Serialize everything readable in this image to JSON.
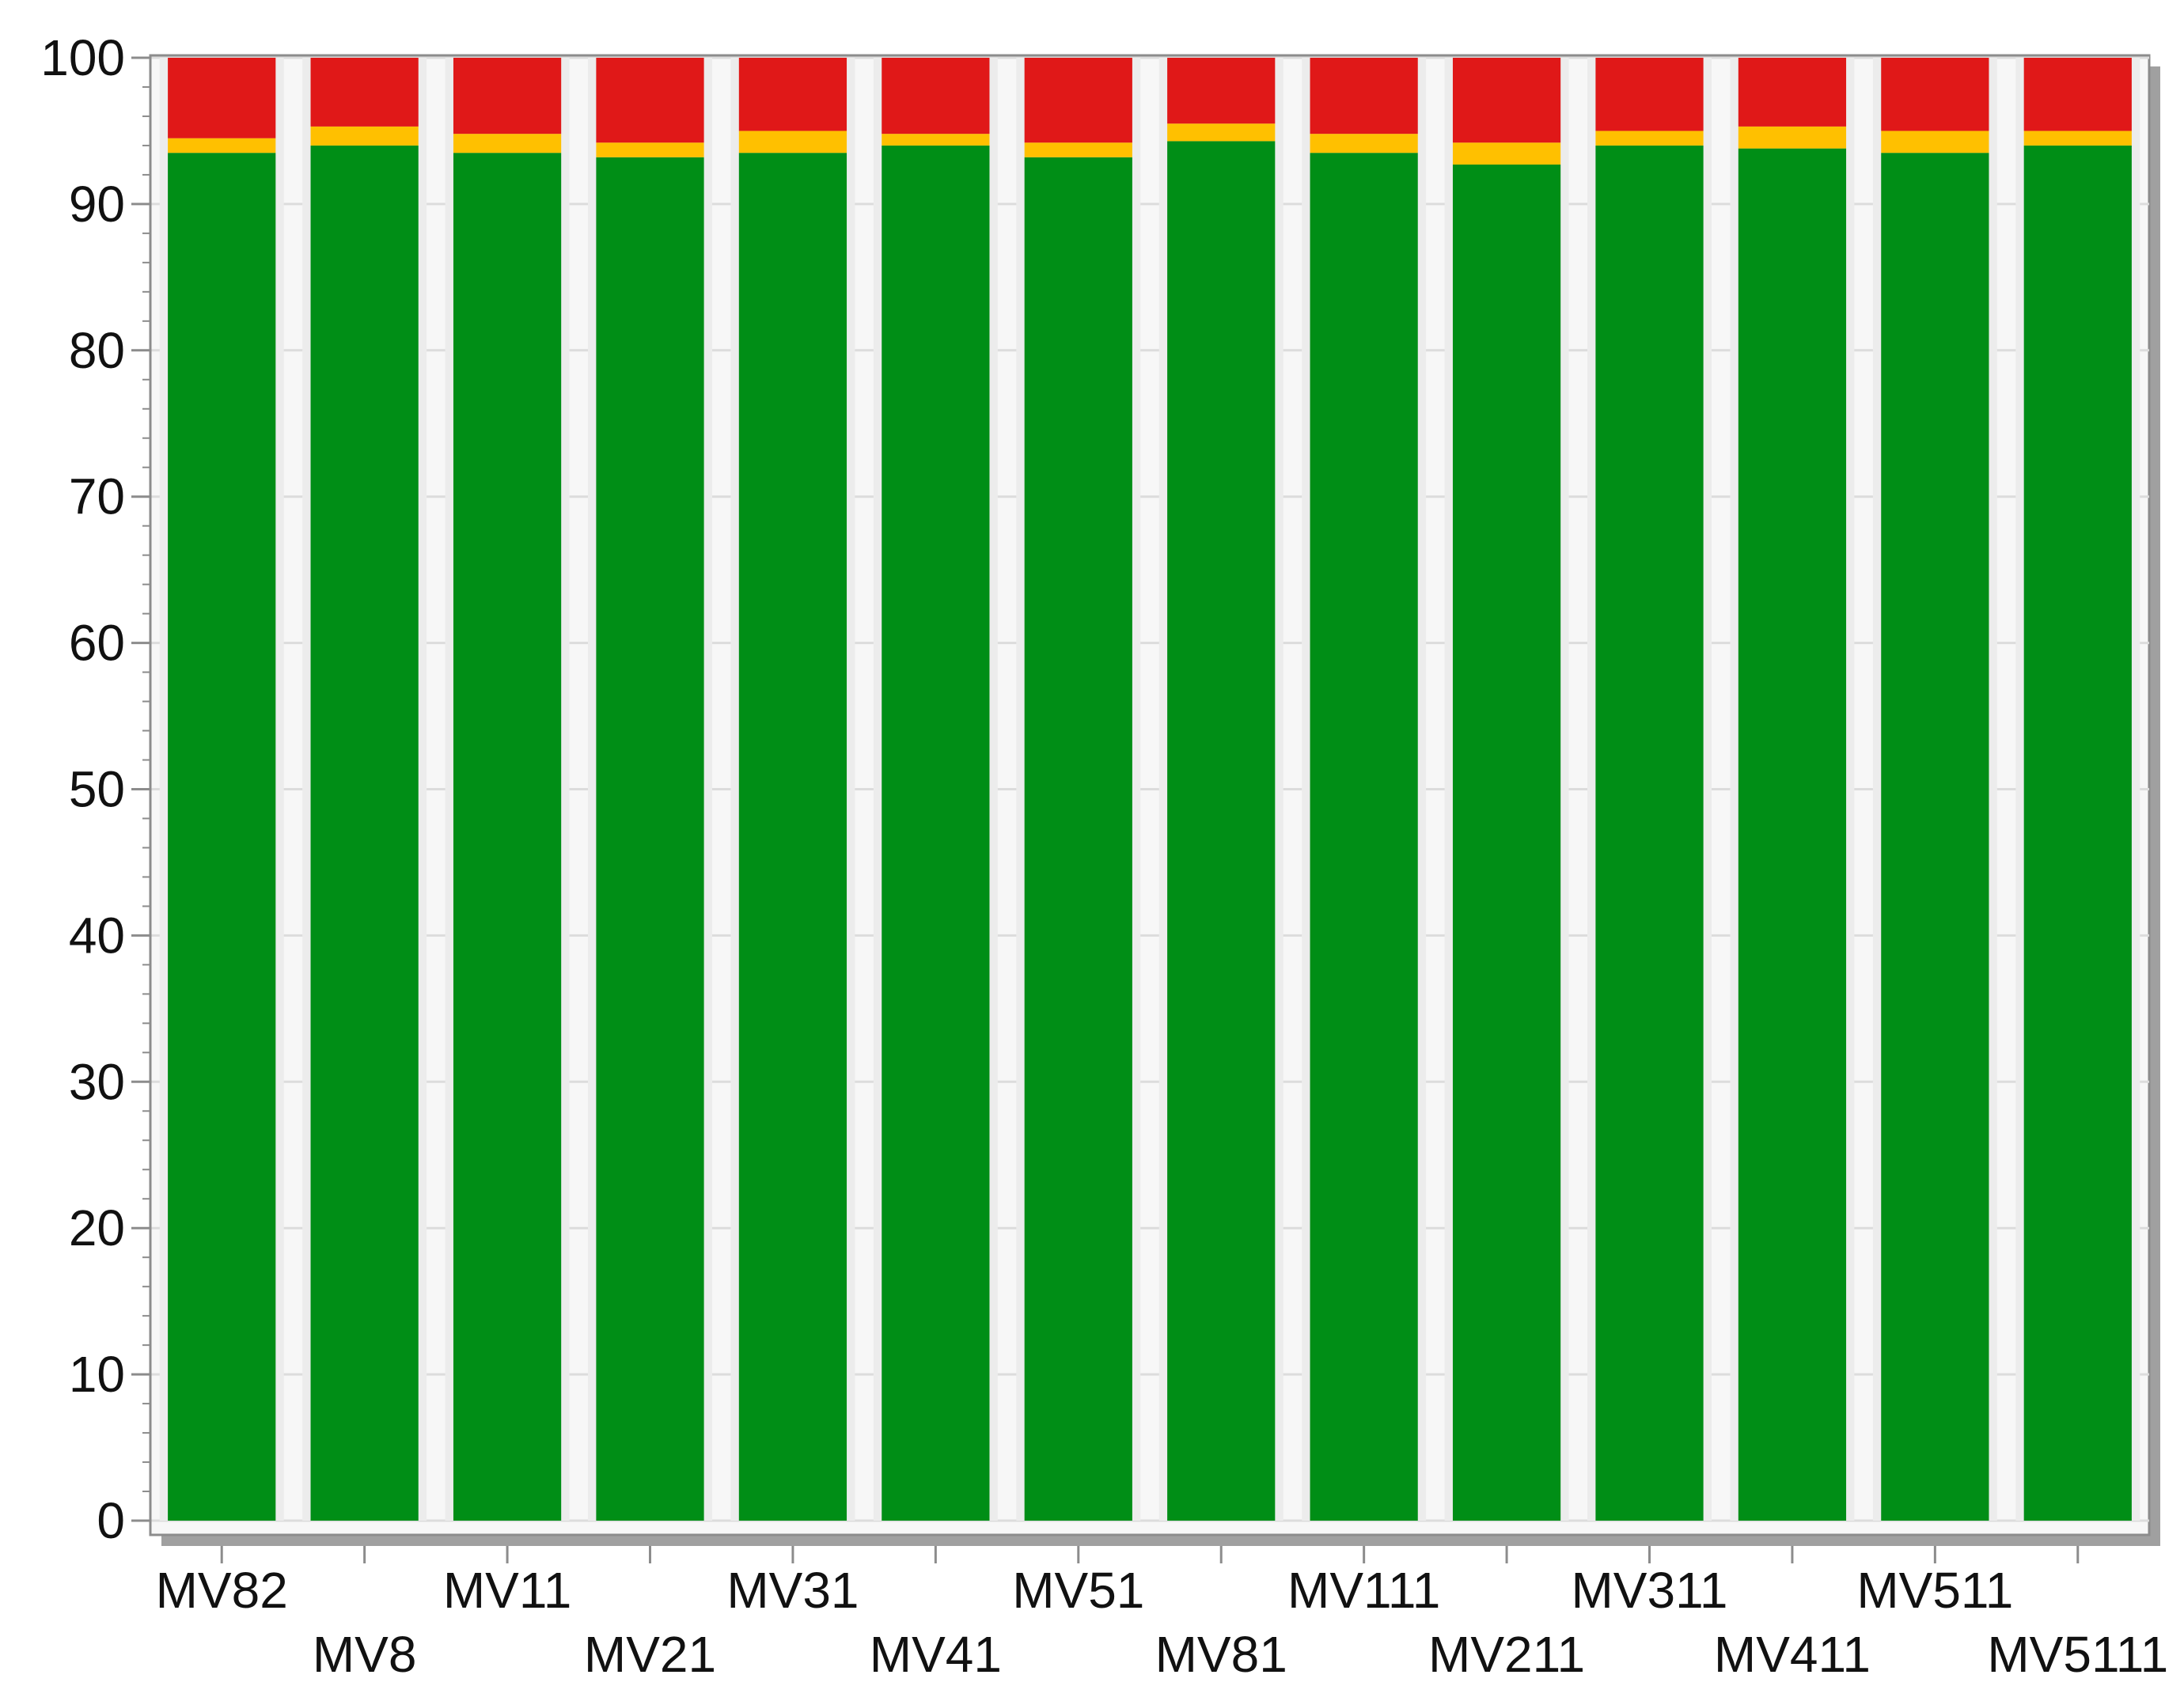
{
  "chart_data": {
    "type": "bar",
    "stacked": true,
    "categories": [
      "MV82",
      "MV8",
      "MV11",
      "MV21",
      "MV31",
      "MV41",
      "MV51",
      "MV81",
      "MV111",
      "MV211",
      "MV311",
      "MV411",
      "MV511",
      "MV5111"
    ],
    "series": [
      {
        "color": "#008e16",
        "values": [
          93.5,
          94.0,
          93.5,
          93.2,
          93.5,
          94.0,
          93.2,
          94.3,
          93.5,
          92.7,
          94.0,
          93.8,
          93.5,
          94.0
        ]
      },
      {
        "color": "#ffc000",
        "values": [
          1.0,
          1.3,
          1.3,
          1.0,
          1.5,
          0.8,
          1.0,
          1.2,
          1.3,
          1.5,
          1.0,
          1.5,
          1.5,
          1.0
        ]
      },
      {
        "color": "#e01818",
        "values": [
          5.5,
          4.7,
          5.2,
          5.8,
          5.0,
          5.2,
          5.8,
          4.5,
          5.2,
          5.8,
          5.0,
          4.7,
          5.0,
          5.0
        ]
      }
    ],
    "ylim": [
      0,
      100
    ],
    "yticks": [
      "0",
      "10",
      "20",
      "30",
      "40",
      "50",
      "60",
      "70",
      "80",
      "90",
      "100"
    ],
    "grid": true,
    "legend": "none",
    "xlabel": "",
    "ylabel": "",
    "title": ""
  }
}
